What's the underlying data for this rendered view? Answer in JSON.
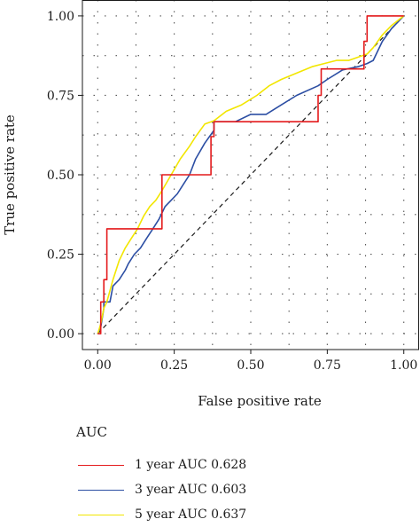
{
  "chart_data": {
    "type": "line",
    "title": "",
    "xlabel": "False positive rate",
    "ylabel": "True positive rate",
    "xlim": [
      -0.05,
      1.05
    ],
    "ylim": [
      -0.05,
      1.05
    ],
    "x_ticks": [
      0.0,
      0.25,
      0.5,
      0.75,
      1.0
    ],
    "x_tick_labels": [
      "0.00",
      "0.25",
      "0.50",
      "0.75",
      "1.00"
    ],
    "y_ticks": [
      0.0,
      0.25,
      0.5,
      0.75,
      1.0
    ],
    "y_tick_labels": [
      "0.00",
      "0.25",
      "0.50",
      "0.75",
      "1.00"
    ],
    "grid": "dotted",
    "reference_line": {
      "x": [
        0,
        1
      ],
      "y": [
        0,
        1
      ],
      "style": "dashed",
      "color": "#1a1a1a"
    },
    "legend": {
      "title": "AUC",
      "placement": "bottom-left",
      "entries": [
        "1 year AUC 0.628",
        "3 year AUC 0.603",
        "5 year AUC 0.637"
      ]
    },
    "series": [
      {
        "name": "1 year AUC 0.628",
        "color": "#e41a1c",
        "x": [
          0,
          0.01,
          0.01,
          0.02,
          0.02,
          0.03,
          0.03,
          0.17,
          0.17,
          0.21,
          0.21,
          0.37,
          0.37,
          0.38,
          0.38,
          0.72,
          0.72,
          0.73,
          0.73,
          0.87,
          0.87,
          0.88,
          0.88,
          1.0,
          1.0
        ],
        "y": [
          0,
          0,
          0.1,
          0.1,
          0.17,
          0.17,
          0.33,
          0.33,
          0.33,
          0.33,
          0.5,
          0.5,
          0.62,
          0.62,
          0.667,
          0.667,
          0.75,
          0.75,
          0.833,
          0.833,
          0.92,
          0.92,
          1.0,
          1.0,
          1.0
        ]
      },
      {
        "name": "3 year AUC 0.603",
        "color": "#2c4ea3",
        "x": [
          0,
          0.01,
          0.02,
          0.02,
          0.04,
          0.05,
          0.07,
          0.09,
          0.1,
          0.12,
          0.14,
          0.16,
          0.18,
          0.2,
          0.22,
          0.24,
          0.26,
          0.28,
          0.3,
          0.32,
          0.35,
          0.38,
          0.38,
          0.45,
          0.5,
          0.55,
          0.6,
          0.65,
          0.72,
          0.75,
          0.8,
          0.85,
          0.88,
          0.9,
          0.93,
          0.96,
          1.0
        ],
        "y": [
          0,
          0.02,
          0.08,
          0.1,
          0.1,
          0.15,
          0.17,
          0.2,
          0.22,
          0.25,
          0.27,
          0.3,
          0.33,
          0.36,
          0.4,
          0.42,
          0.44,
          0.47,
          0.5,
          0.55,
          0.6,
          0.64,
          0.667,
          0.667,
          0.69,
          0.69,
          0.72,
          0.75,
          0.78,
          0.8,
          0.83,
          0.84,
          0.85,
          0.86,
          0.92,
          0.96,
          1.0
        ]
      },
      {
        "name": "5 year AUC 0.637",
        "color": "#f2e600",
        "x": [
          0,
          0.01,
          0.02,
          0.03,
          0.05,
          0.07,
          0.09,
          0.11,
          0.13,
          0.15,
          0.17,
          0.19,
          0.21,
          0.24,
          0.27,
          0.3,
          0.32,
          0.35,
          0.38,
          0.42,
          0.47,
          0.52,
          0.56,
          0.6,
          0.65,
          0.7,
          0.74,
          0.78,
          0.82,
          0.85,
          0.88,
          0.9,
          0.93,
          0.96,
          1.0
        ],
        "y": [
          0,
          0.03,
          0.08,
          0.1,
          0.17,
          0.23,
          0.27,
          0.3,
          0.33,
          0.37,
          0.4,
          0.42,
          0.45,
          0.5,
          0.55,
          0.59,
          0.62,
          0.66,
          0.67,
          0.7,
          0.72,
          0.75,
          0.78,
          0.8,
          0.82,
          0.84,
          0.85,
          0.86,
          0.86,
          0.87,
          0.88,
          0.9,
          0.94,
          0.97,
          1.0
        ]
      }
    ]
  }
}
